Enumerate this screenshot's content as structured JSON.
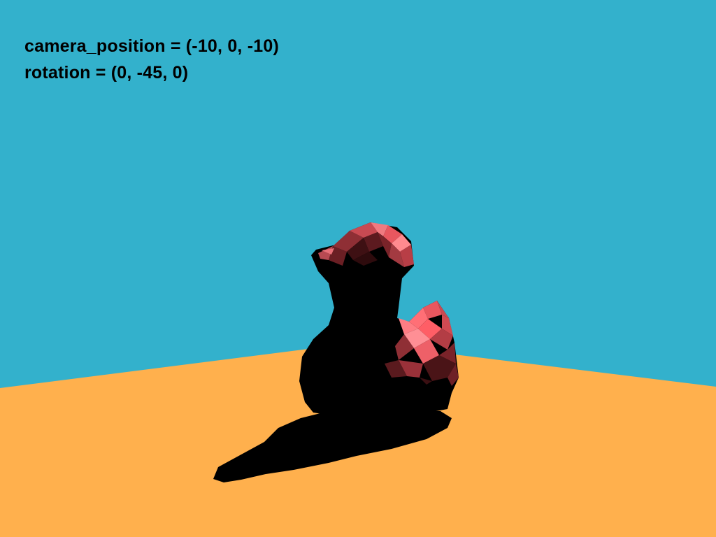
{
  "scene": {
    "sky_color": "#33b1cc",
    "ground_color": "#ffb04d",
    "model": "rubber-duck",
    "model_color": "#e8575f",
    "shadow_color": "#000000"
  },
  "hud": {
    "camera_position_label": "camera_position = (-10, 0, -10)",
    "rotation_label": "rotation = (0, -45, 0)"
  }
}
